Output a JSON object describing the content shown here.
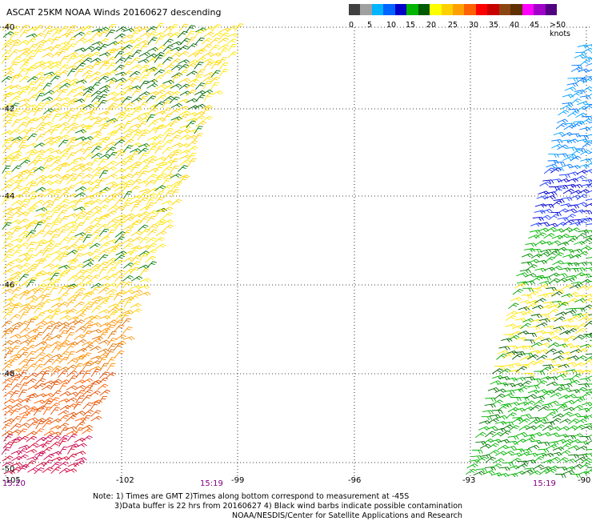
{
  "title": "ASCAT 25KM NOAA Winds 20160627 descending",
  "colorbar": {
    "colors": [
      "#404040",
      "#a0a0a0",
      "#00b4ff",
      "#0064ff",
      "#0000c8",
      "#00b400",
      "#005a00",
      "#ffff00",
      "#ffd000",
      "#ffa000",
      "#ff6000",
      "#ff0000",
      "#c80000",
      "#8b4513",
      "#603000",
      "#ff00ff",
      "#a000c8",
      "#500080"
    ],
    "labels": [
      "0",
      "5",
      "10",
      "15",
      "20",
      "25",
      "30",
      "35",
      "40",
      "45",
      ">50 knots"
    ]
  },
  "axes": {
    "lon_labels": [
      "-105",
      "-102",
      "-99",
      "-96",
      "-93",
      "-90"
    ],
    "lat_labels": [
      "-40",
      "-42",
      "-44",
      "-46",
      "-48",
      "-50"
    ],
    "lon_range": [
      -105,
      -90
    ],
    "lat_range": [
      -50,
      -40
    ]
  },
  "time_labels": [
    "15:20",
    "15:19",
    "15:19"
  ],
  "notes": {
    "line1": "Note: 1) Times are GMT  2)Times along bottom correspond to measurement at -45S",
    "line2": "3)Data buffer is 22 hrs from 20160627  4) Black wind barbs indicate possible contamination",
    "line3": "NOAA/NESDIS/Center for Satellite Applications and Research"
  },
  "swaths": [
    {
      "name": "west",
      "color_bands": [
        "yellow",
        "orange",
        "red"
      ]
    },
    {
      "name": "east",
      "color_bands": [
        "blue",
        "green",
        "yellow"
      ]
    }
  ]
}
